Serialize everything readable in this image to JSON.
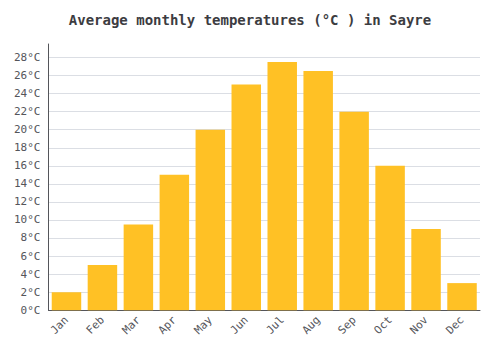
{
  "chart_data": {
    "type": "bar",
    "title": "Average monthly temperatures (°C ) in Sayre",
    "categories": [
      "Jan",
      "Feb",
      "Mar",
      "Apr",
      "May",
      "Jun",
      "Jul",
      "Aug",
      "Sep",
      "Oct",
      "Nov",
      "Dec"
    ],
    "values": [
      2.0,
      5.0,
      9.5,
      15.0,
      20.0,
      25.0,
      27.5,
      26.5,
      22.0,
      16.0,
      9.0,
      3.0
    ],
    "color": "#FFC125",
    "ylim": [
      0,
      29.5
    ],
    "yticks": [
      {
        "value": 0,
        "label": "0°C"
      },
      {
        "value": 2,
        "label": "2°C"
      },
      {
        "value": 4,
        "label": "4°C"
      },
      {
        "value": 6,
        "label": "6°C"
      },
      {
        "value": 8,
        "label": "8°C"
      },
      {
        "value": 10,
        "label": "10°C"
      },
      {
        "value": 12,
        "label": "12°C"
      },
      {
        "value": 14,
        "label": "14°C"
      },
      {
        "value": 16,
        "label": "16°C"
      },
      {
        "value": 18,
        "label": "18°C"
      },
      {
        "value": 20,
        "label": "20°C"
      },
      {
        "value": 22,
        "label": "22°C"
      },
      {
        "value": 24,
        "label": "24°C"
      },
      {
        "value": 26,
        "label": "26°C"
      },
      {
        "value": 28,
        "label": "28°C"
      }
    ],
    "grid": true
  }
}
